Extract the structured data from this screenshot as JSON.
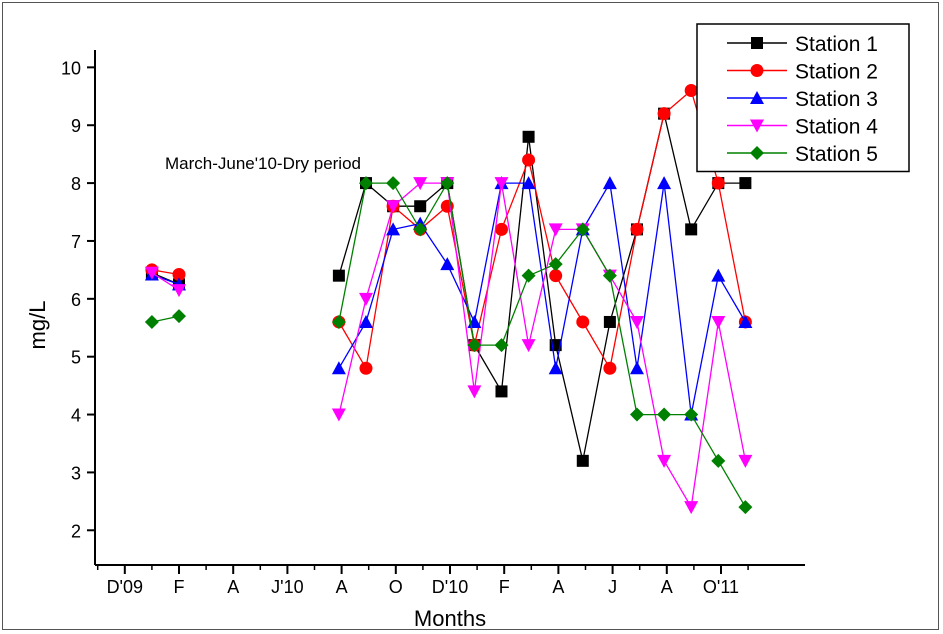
{
  "chart_data": {
    "type": "line",
    "title": "",
    "xlabel": "Months",
    "ylabel": "mg/L",
    "ylim": [
      1.4,
      10.3
    ],
    "yticks": [
      2,
      3,
      4,
      5,
      6,
      7,
      8,
      9,
      10
    ],
    "x_ticks": [
      {
        "label": "D'09",
        "x": 1
      },
      {
        "label": "F",
        "x": 3
      },
      {
        "label": "A",
        "x": 5
      },
      {
        "label": "J'10",
        "x": 7
      },
      {
        "label": "A",
        "x": 9
      },
      {
        "label": "O",
        "x": 11
      },
      {
        "label": "D'10",
        "x": 13
      },
      {
        "label": "F",
        "x": 15
      },
      {
        "label": "A",
        "x": 17
      },
      {
        "label": "J",
        "x": 19
      },
      {
        "label": "A",
        "x": 21
      },
      {
        "label": "O'11",
        "x": 23
      }
    ],
    "x_minor_ticks": [
      0,
      2,
      4,
      6,
      8,
      10,
      12,
      14,
      16,
      18,
      20,
      22,
      24
    ],
    "xlim": [
      -0.1,
      26.1
    ],
    "annotation": "March-June'10-Dry period",
    "legend_position": "top-right",
    "series": [
      {
        "name": "Station 1",
        "color": "#000000",
        "marker": "square",
        "points": [
          [
            2,
            6.45
          ],
          [
            3,
            6.25
          ],
          null,
          [
            8.9,
            6.4
          ],
          [
            9.9,
            8.0
          ],
          [
            10.9,
            7.6
          ],
          [
            11.9,
            7.6
          ],
          [
            12.9,
            8.0
          ],
          [
            13.9,
            5.2
          ],
          [
            14.9,
            4.4
          ],
          [
            15.9,
            8.8
          ],
          [
            16.9,
            5.2
          ],
          [
            17.9,
            3.2
          ],
          [
            18.9,
            5.6
          ],
          [
            19.9,
            7.2
          ],
          [
            20.9,
            9.2
          ],
          [
            21.9,
            7.2
          ],
          [
            22.9,
            8.0
          ],
          [
            23.9,
            8.0
          ]
        ]
      },
      {
        "name": "Station 2",
        "color": "#ff0000",
        "marker": "circle",
        "points": [
          [
            2,
            6.5
          ],
          [
            3,
            6.42
          ],
          null,
          [
            8.9,
            5.6
          ],
          [
            9.9,
            4.8
          ],
          [
            10.9,
            7.6
          ],
          [
            11.9,
            7.2
          ],
          [
            12.9,
            7.6
          ],
          [
            13.9,
            5.2
          ],
          [
            14.9,
            7.2
          ],
          [
            15.9,
            8.4
          ],
          [
            16.9,
            6.4
          ],
          [
            17.9,
            5.6
          ],
          [
            18.9,
            4.8
          ],
          [
            19.9,
            7.2
          ],
          [
            20.9,
            9.2
          ],
          [
            21.9,
            9.6
          ],
          [
            22.9,
            8.0
          ],
          [
            23.9,
            5.6
          ]
        ]
      },
      {
        "name": "Station 3",
        "color": "#0000ff",
        "marker": "triangle-up",
        "points": [
          [
            2,
            6.42
          ],
          [
            3,
            6.25
          ],
          null,
          [
            8.9,
            4.8
          ],
          [
            9.9,
            5.6
          ],
          [
            10.9,
            7.2
          ],
          [
            11.9,
            7.3
          ],
          [
            12.9,
            6.6
          ],
          [
            13.9,
            5.6
          ],
          [
            14.9,
            8.0
          ],
          [
            15.9,
            8.0
          ],
          [
            16.9,
            4.8
          ],
          [
            17.9,
            7.2
          ],
          [
            18.9,
            8.0
          ],
          [
            19.9,
            4.8
          ],
          [
            20.9,
            8.0
          ],
          [
            21.9,
            4.0
          ],
          [
            22.9,
            6.4
          ],
          [
            23.9,
            5.6
          ]
        ]
      },
      {
        "name": "Station 4",
        "color": "#ff00ff",
        "marker": "triangle-down",
        "points": [
          [
            2,
            6.45
          ],
          [
            3,
            6.15
          ],
          null,
          [
            8.9,
            4.0
          ],
          [
            9.9,
            6.0
          ],
          [
            10.9,
            7.6
          ],
          [
            11.9,
            8.0
          ],
          [
            12.9,
            8.0
          ],
          [
            13.9,
            4.4
          ],
          [
            14.9,
            8.0
          ],
          [
            15.9,
            5.2
          ],
          [
            16.9,
            7.2
          ],
          [
            17.9,
            7.2
          ],
          [
            18.9,
            6.4
          ],
          [
            19.9,
            5.6
          ],
          [
            20.9,
            3.2
          ],
          [
            21.9,
            2.4
          ],
          [
            22.9,
            5.6
          ],
          [
            23.9,
            3.2
          ]
        ]
      },
      {
        "name": "Station 5",
        "color": "#008000",
        "marker": "diamond",
        "points": [
          [
            2,
            5.6
          ],
          [
            3,
            5.7
          ],
          null,
          [
            8.9,
            5.6
          ],
          [
            9.9,
            8.0
          ],
          [
            10.9,
            8.0
          ],
          [
            11.9,
            7.2
          ],
          [
            12.9,
            8.0
          ],
          [
            13.9,
            5.2
          ],
          [
            14.9,
            5.2
          ],
          [
            15.9,
            6.4
          ],
          [
            16.9,
            6.6
          ],
          [
            17.9,
            7.2
          ],
          [
            18.9,
            6.4
          ],
          [
            19.9,
            4.0
          ],
          [
            20.9,
            4.0
          ],
          [
            21.9,
            4.0
          ],
          [
            22.9,
            3.2
          ],
          [
            23.9,
            2.4
          ]
        ]
      }
    ]
  }
}
